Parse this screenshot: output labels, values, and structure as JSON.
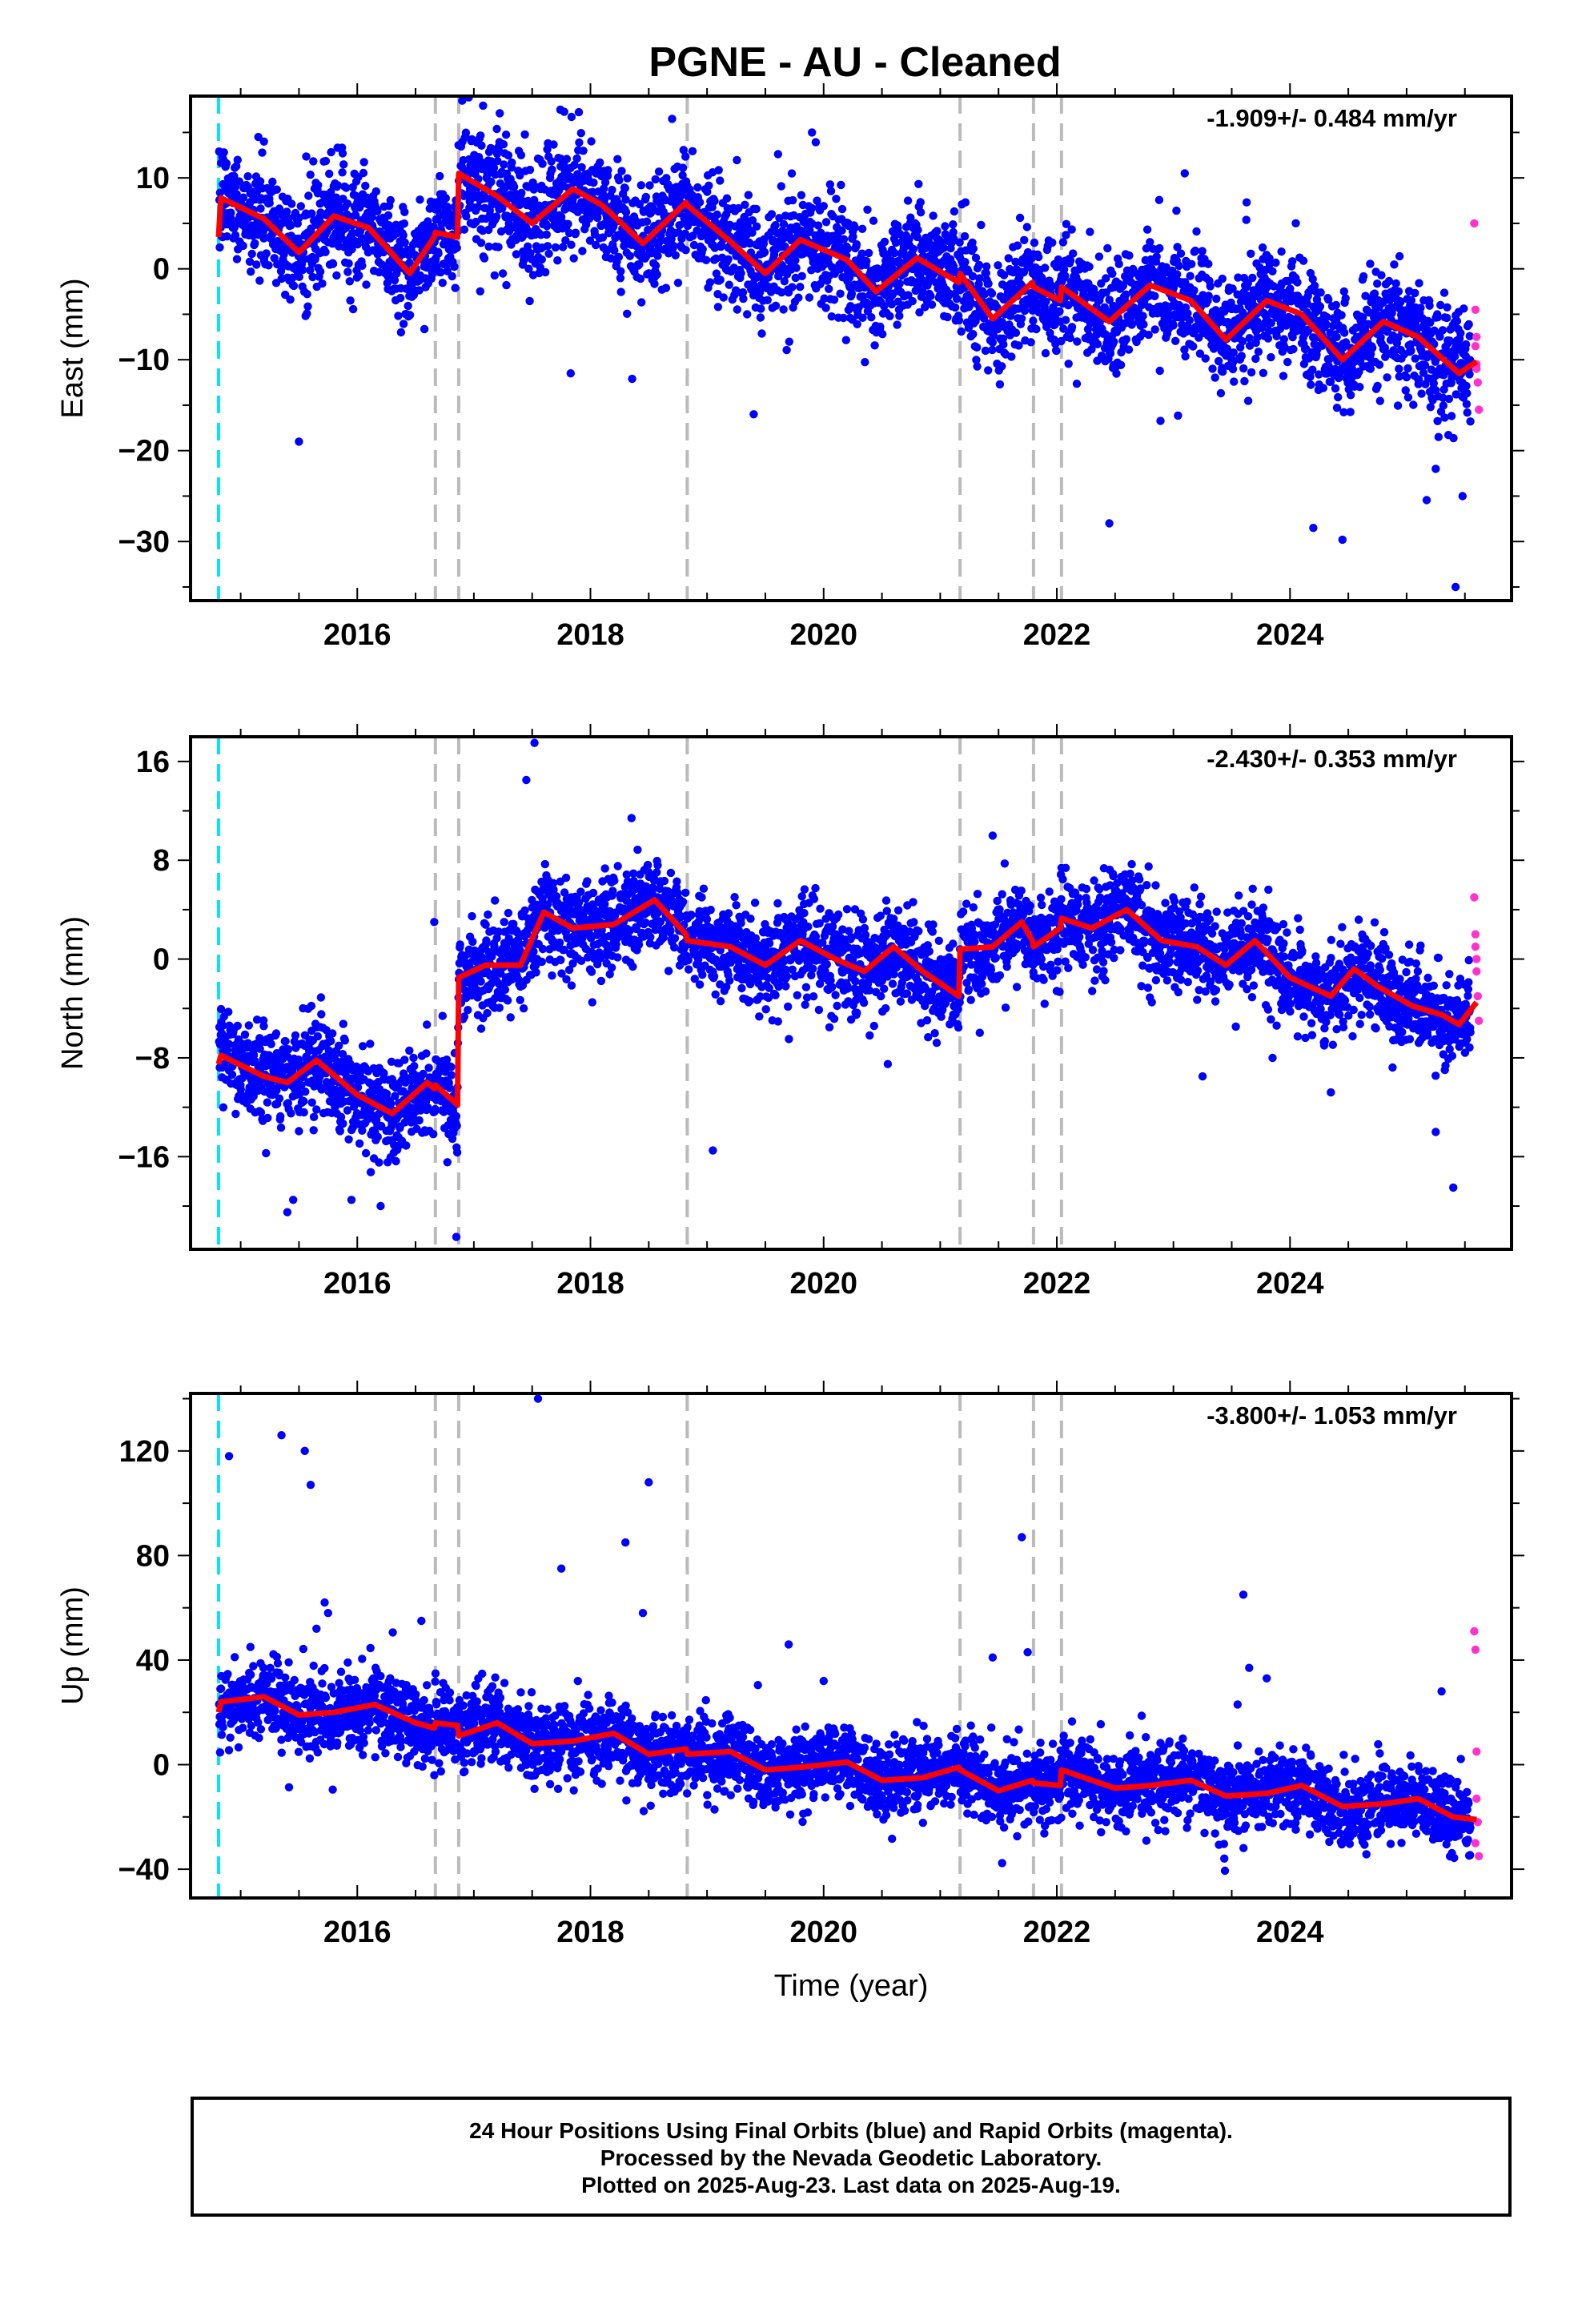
{
  "title": "PGNE  - AU - Cleaned",
  "colors": {
    "final": "#0000ff",
    "rapid": "#ff33cc",
    "model": "#ff0000",
    "break_gray": "#bbbbbb",
    "break_cyan": "#00e5ff"
  },
  "footer": {
    "line1": "24 Hour Positions Using Final Orbits (blue) and Rapid Orbits (magenta).",
    "line2": "Processed by the Nevada Geodetic Laboratory.",
    "line3": "Plotted on 2025-Aug-23. Last data on 2025-Aug-19."
  },
  "chart_data": [
    {
      "type": "scatter",
      "ylabel": "East (mm)",
      "rate": "-1.909+/- 0.484 mm/yr",
      "xlim": [
        2014.57,
        2025.9
      ],
      "ylim": [
        -36.5,
        19
      ],
      "xticks": [
        2016,
        2018,
        2020,
        2022,
        2024
      ],
      "yticks": [
        -30,
        -20,
        -10,
        0,
        10
      ],
      "breaks_gray": [
        2016.67,
        2016.87,
        2018.83,
        2021.17,
        2021.8,
        2022.04
      ],
      "break_cyan": 2014.81,
      "model": {
        "x": [
          2014.81,
          2014.83,
          2015.2,
          2015.5,
          2015.8,
          2016.1,
          2016.45,
          2016.66,
          2016.67,
          2016.86,
          2016.87,
          2017.2,
          2017.5,
          2017.85,
          2018.1,
          2018.45,
          2018.82,
          2018.83,
          2019.2,
          2019.5,
          2019.8,
          2020.2,
          2020.45,
          2020.8,
          2021.16,
          2021.17,
          2021.45,
          2021.79,
          2021.8,
          2022.03,
          2022.04,
          2022.45,
          2022.8,
          2023.15,
          2023.45,
          2023.8,
          2024.1,
          2024.45,
          2024.8,
          2025.1,
          2025.45,
          2025.6
        ],
        "y": [
          3.5,
          7.8,
          5.5,
          1.8,
          5.8,
          4.5,
          -0.5,
          3.5,
          4,
          3.5,
          10.5,
          8,
          5,
          8.8,
          7,
          2.8,
          7.3,
          7,
          3,
          -0.5,
          3.2,
          1,
          -2.5,
          1.2,
          -1.5,
          -0.5,
          -5.5,
          -1.5,
          -2,
          -3.5,
          -2,
          -5.8,
          -1.8,
          -3.5,
          -7.8,
          -3.5,
          -5,
          -10,
          -5.8,
          -7.5,
          -11.5,
          -10.2
        ]
      },
      "rapid": {
        "x": [
          2025.58,
          2025.59,
          2025.6,
          2025.6,
          2025.61,
          2025.62,
          2025.59,
          2025.6
        ],
        "y": [
          5,
          -4.5,
          -7.5,
          -10.5,
          -12.5,
          -15.5,
          -8.5,
          -11
        ]
      },
      "outliers": {
        "x": [
          2015.5,
          2015.2,
          2017.83,
          2019.4,
          2022.45,
          2024.2,
          2024.45,
          2025.42,
          2025.48,
          2025.25,
          2016.9,
          2018.7,
          2019.9
        ],
        "y": [
          -19,
          14,
          -11.5,
          -16,
          -28,
          -28.5,
          -29.8,
          -35,
          -25,
          -22,
          18.5,
          16.5,
          15
        ]
      },
      "band": {
        "noise": 3,
        "jitter": 5
      }
    },
    {
      "type": "scatter",
      "ylabel": "North (mm)",
      "rate": "-2.430+/- 0.353 mm/yr",
      "xlim": [
        2014.57,
        2025.9
      ],
      "ylim": [
        -23.5,
        18
      ],
      "xticks": [
        2016,
        2018,
        2020,
        2022,
        2024
      ],
      "yticks": [
        -16,
        -8,
        0,
        8,
        16
      ],
      "breaks_gray": [
        2016.67,
        2016.87,
        2018.83,
        2021.17,
        2021.8,
        2022.04
      ],
      "break_cyan": 2014.81,
      "model": {
        "x": [
          2014.81,
          2014.83,
          2015.2,
          2015.4,
          2015.65,
          2016.0,
          2016.3,
          2016.6,
          2016.66,
          2016.67,
          2016.86,
          2016.87,
          2017.1,
          2017.4,
          2017.6,
          2017.85,
          2018.2,
          2018.55,
          2018.82,
          2018.83,
          2019.2,
          2019.5,
          2019.8,
          2020.1,
          2020.35,
          2020.6,
          2020.85,
          2021.16,
          2021.17,
          2021.45,
          2021.7,
          2021.79,
          2021.8,
          2022.03,
          2022.04,
          2022.3,
          2022.6,
          2022.9,
          2023.2,
          2023.45,
          2023.7,
          2024.0,
          2024.35,
          2024.55,
          2024.75,
          2025.05,
          2025.3,
          2025.45,
          2025.6
        ],
        "y": [
          -8.5,
          -7.8,
          -9.5,
          -10,
          -8.2,
          -11,
          -12.5,
          -10,
          -10.5,
          -10.2,
          -11.8,
          -1.5,
          -0.5,
          -0.5,
          3.8,
          2.5,
          2.8,
          4.8,
          2,
          1.5,
          1,
          -0.5,
          1.5,
          0,
          -1,
          1,
          -1,
          -3,
          0.8,
          1,
          3,
          1.5,
          1,
          2.5,
          3.3,
          2.5,
          4,
          1.5,
          1,
          -0.5,
          1.5,
          -1.5,
          -3,
          -0.8,
          -2.2,
          -3.8,
          -4.5,
          -5.3,
          -3.5
        ]
      },
      "rapid": {
        "x": [
          2025.58,
          2025.59,
          2025.6,
          2025.6,
          2025.61,
          2025.62,
          2025.59
        ],
        "y": [
          5,
          2,
          0,
          -1,
          -3,
          -5,
          1
        ]
      },
      "outliers": {
        "x": [
          2016.85,
          2017.52,
          2017.45,
          2015.4,
          2015.45,
          2015.95,
          2016.2,
          2016.66,
          2019.05,
          2025.25,
          2025.4,
          2024.35,
          2021.45,
          2020.55,
          2023.25,
          2023.85
        ],
        "y": [
          -22.5,
          17.5,
          14.5,
          -20.5,
          -19.5,
          -19.5,
          -20,
          3,
          -15.5,
          -14,
          -18.5,
          -10.8,
          10,
          -8.5,
          -9.5,
          -8
        ]
      },
      "band": {
        "noise": 1.8,
        "jitter": 3
      }
    },
    {
      "type": "scatter",
      "ylabel": "Up (mm)",
      "xlabel": "Time (year)",
      "rate": "-3.800+/- 1.053 mm/yr",
      "xlim": [
        2014.57,
        2025.9
      ],
      "ylim": [
        -51,
        142
      ],
      "xticks": [
        2016,
        2018,
        2020,
        2022,
        2024
      ],
      "yticks": [
        -40,
        0,
        40,
        80,
        120
      ],
      "breaks_gray": [
        2016.67,
        2016.87,
        2018.83,
        2021.17,
        2021.8,
        2022.04
      ],
      "break_cyan": 2014.81,
      "model": {
        "x": [
          2014.81,
          2014.83,
          2015.2,
          2015.5,
          2015.8,
          2016.15,
          2016.5,
          2016.66,
          2016.67,
          2016.86,
          2016.87,
          2017.2,
          2017.5,
          2017.85,
          2018.2,
          2018.5,
          2018.82,
          2018.83,
          2019.2,
          2019.5,
          2019.8,
          2020.2,
          2020.5,
          2020.85,
          2021.16,
          2021.17,
          2021.5,
          2021.79,
          2021.8,
          2022.03,
          2022.04,
          2022.5,
          2022.8,
          2023.15,
          2023.45,
          2023.8,
          2024.1,
          2024.45,
          2024.8,
          2025.1,
          2025.4,
          2025.6
        ],
        "y": [
          20,
          24,
          26,
          19,
          20,
          23,
          16,
          14,
          16,
          15,
          11,
          16,
          8,
          9,
          12,
          4,
          6,
          4,
          5,
          -2,
          -1,
          1,
          -6,
          -5,
          -1,
          -2,
          -10,
          -6,
          -7,
          -8,
          -2,
          -9,
          -8,
          -6,
          -12,
          -11,
          -8,
          -16,
          -15,
          -13,
          -20,
          -21
        ]
      },
      "rapid": {
        "x": [
          2025.58,
          2025.59,
          2025.6,
          2025.6,
          2025.61,
          2025.62,
          2025.59
        ],
        "y": [
          51,
          44,
          5,
          -13,
          -22,
          -35,
          -30
        ]
      },
      "outliers": {
        "x": [
          2014.9,
          2015.35,
          2015.55,
          2015.6,
          2015.72,
          2015.75,
          2015.65,
          2016.55,
          2017.55,
          2017.75,
          2018.3,
          2018.5,
          2018.45,
          2019.7,
          2020.0,
          2021.45,
          2021.7,
          2021.75,
          2023.6,
          2023.65,
          2023.8,
          2023.55,
          2025.3
        ],
        "y": [
          118,
          126,
          120,
          107,
          62,
          58,
          52,
          55,
          140,
          75,
          85,
          108,
          58,
          46,
          32,
          41,
          87,
          43,
          65,
          37,
          33,
          23,
          28
        ]
      },
      "band": {
        "noise": 7,
        "jitter": 9
      }
    }
  ]
}
